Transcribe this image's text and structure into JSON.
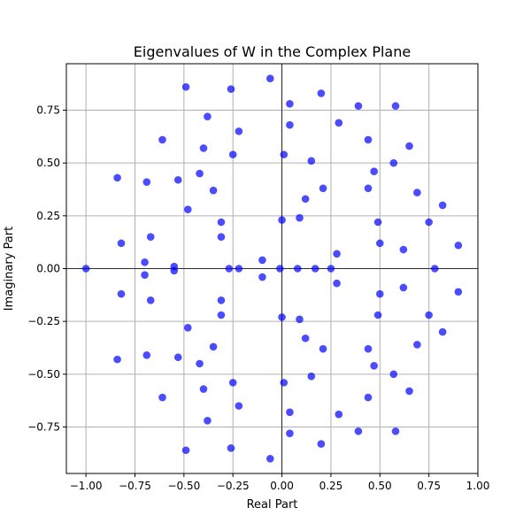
{
  "chart_data": {
    "type": "scatter",
    "title": "Eigenvalues of W in the Complex Plane",
    "xlabel": "Real Part",
    "ylabel": "Imaginary Part",
    "xlim": [
      -1.1,
      1.0
    ],
    "ylim": [
      -0.97,
      0.97
    ],
    "xticks": [
      -1.0,
      -0.75,
      -0.5,
      -0.25,
      0.0,
      0.25,
      0.5,
      0.75,
      1.0
    ],
    "xtick_labels": [
      "−1.00",
      "−0.75",
      "−0.50",
      "−0.25",
      "0.00",
      "0.25",
      "0.50",
      "0.75",
      "1.00"
    ],
    "yticks": [
      -0.75,
      -0.5,
      -0.25,
      0.0,
      0.25,
      0.5,
      0.75
    ],
    "ytick_labels": [
      "−0.75",
      "−0.50",
      "−0.25",
      "0.00",
      "0.25",
      "0.50",
      "0.75"
    ],
    "grid": true,
    "reference_lines": {
      "x": 0,
      "y": 0
    },
    "marker_color": "#0000ff",
    "marker_alpha": 0.7,
    "series": [
      {
        "points": [
          [
            -1.0,
            0.0
          ],
          [
            0.9,
            0.11
          ],
          [
            0.9,
            -0.11
          ],
          [
            0.82,
            0.3
          ],
          [
            0.82,
            -0.3
          ],
          [
            0.78,
            0.0
          ],
          [
            0.75,
            0.22
          ],
          [
            0.75,
            -0.22
          ],
          [
            0.69,
            0.36
          ],
          [
            0.69,
            -0.36
          ],
          [
            0.65,
            0.58
          ],
          [
            0.65,
            -0.58
          ],
          [
            0.62,
            0.09
          ],
          [
            0.62,
            -0.09
          ],
          [
            0.58,
            0.77
          ],
          [
            0.58,
            -0.77
          ],
          [
            0.57,
            0.5
          ],
          [
            0.57,
            -0.5
          ],
          [
            0.5,
            0.12
          ],
          [
            0.5,
            -0.12
          ],
          [
            0.49,
            0.22
          ],
          [
            0.49,
            -0.22
          ],
          [
            0.47,
            0.46
          ],
          [
            0.47,
            -0.46
          ],
          [
            0.44,
            0.61
          ],
          [
            0.44,
            -0.61
          ],
          [
            0.44,
            0.38
          ],
          [
            0.44,
            -0.38
          ],
          [
            0.39,
            0.77
          ],
          [
            0.39,
            -0.77
          ],
          [
            0.29,
            0.69
          ],
          [
            0.29,
            -0.69
          ],
          [
            0.28,
            0.07
          ],
          [
            0.28,
            -0.07
          ],
          [
            0.25,
            0.0
          ],
          [
            0.21,
            0.38
          ],
          [
            0.21,
            -0.38
          ],
          [
            0.2,
            0.83
          ],
          [
            0.2,
            -0.83
          ],
          [
            0.17,
            0.0
          ],
          [
            0.15,
            0.51
          ],
          [
            0.15,
            -0.51
          ],
          [
            0.12,
            0.33
          ],
          [
            0.12,
            -0.33
          ],
          [
            0.09,
            0.24
          ],
          [
            0.09,
            -0.24
          ],
          [
            0.08,
            0.0
          ],
          [
            0.04,
            0.78
          ],
          [
            0.04,
            -0.78
          ],
          [
            0.04,
            0.68
          ],
          [
            0.04,
            -0.68
          ],
          [
            0.01,
            0.54
          ],
          [
            0.01,
            -0.54
          ],
          [
            0.0,
            0.23
          ],
          [
            0.0,
            -0.23
          ],
          [
            -0.01,
            0.0
          ],
          [
            -0.06,
            0.9
          ],
          [
            -0.06,
            -0.9
          ],
          [
            -0.1,
            0.04
          ],
          [
            -0.1,
            -0.04
          ],
          [
            -0.22,
            0.0
          ],
          [
            -0.22,
            0.65
          ],
          [
            -0.22,
            -0.65
          ],
          [
            -0.25,
            0.54
          ],
          [
            -0.25,
            -0.54
          ],
          [
            -0.26,
            0.85
          ],
          [
            -0.26,
            -0.85
          ],
          [
            -0.27,
            0.0
          ],
          [
            -0.31,
            0.22
          ],
          [
            -0.31,
            -0.22
          ],
          [
            -0.31,
            0.15
          ],
          [
            -0.31,
            -0.15
          ],
          [
            -0.35,
            0.37
          ],
          [
            -0.35,
            -0.37
          ],
          [
            -0.38,
            0.72
          ],
          [
            -0.38,
            -0.72
          ],
          [
            -0.4,
            0.57
          ],
          [
            -0.4,
            -0.57
          ],
          [
            -0.42,
            0.45
          ],
          [
            -0.42,
            -0.45
          ],
          [
            -0.48,
            0.28
          ],
          [
            -0.48,
            -0.28
          ],
          [
            -0.49,
            0.86
          ],
          [
            -0.49,
            -0.86
          ],
          [
            -0.53,
            0.42
          ],
          [
            -0.53,
            -0.42
          ],
          [
            -0.55,
            0.01
          ],
          [
            -0.55,
            -0.01
          ],
          [
            -0.61,
            0.61
          ],
          [
            -0.61,
            -0.61
          ],
          [
            -0.67,
            0.15
          ],
          [
            -0.67,
            -0.15
          ],
          [
            -0.69,
            0.41
          ],
          [
            -0.69,
            -0.41
          ],
          [
            -0.7,
            0.03
          ],
          [
            -0.7,
            -0.03
          ],
          [
            -0.82,
            0.12
          ],
          [
            -0.82,
            -0.12
          ],
          [
            -0.84,
            0.43
          ],
          [
            -0.84,
            -0.43
          ]
        ]
      }
    ]
  }
}
